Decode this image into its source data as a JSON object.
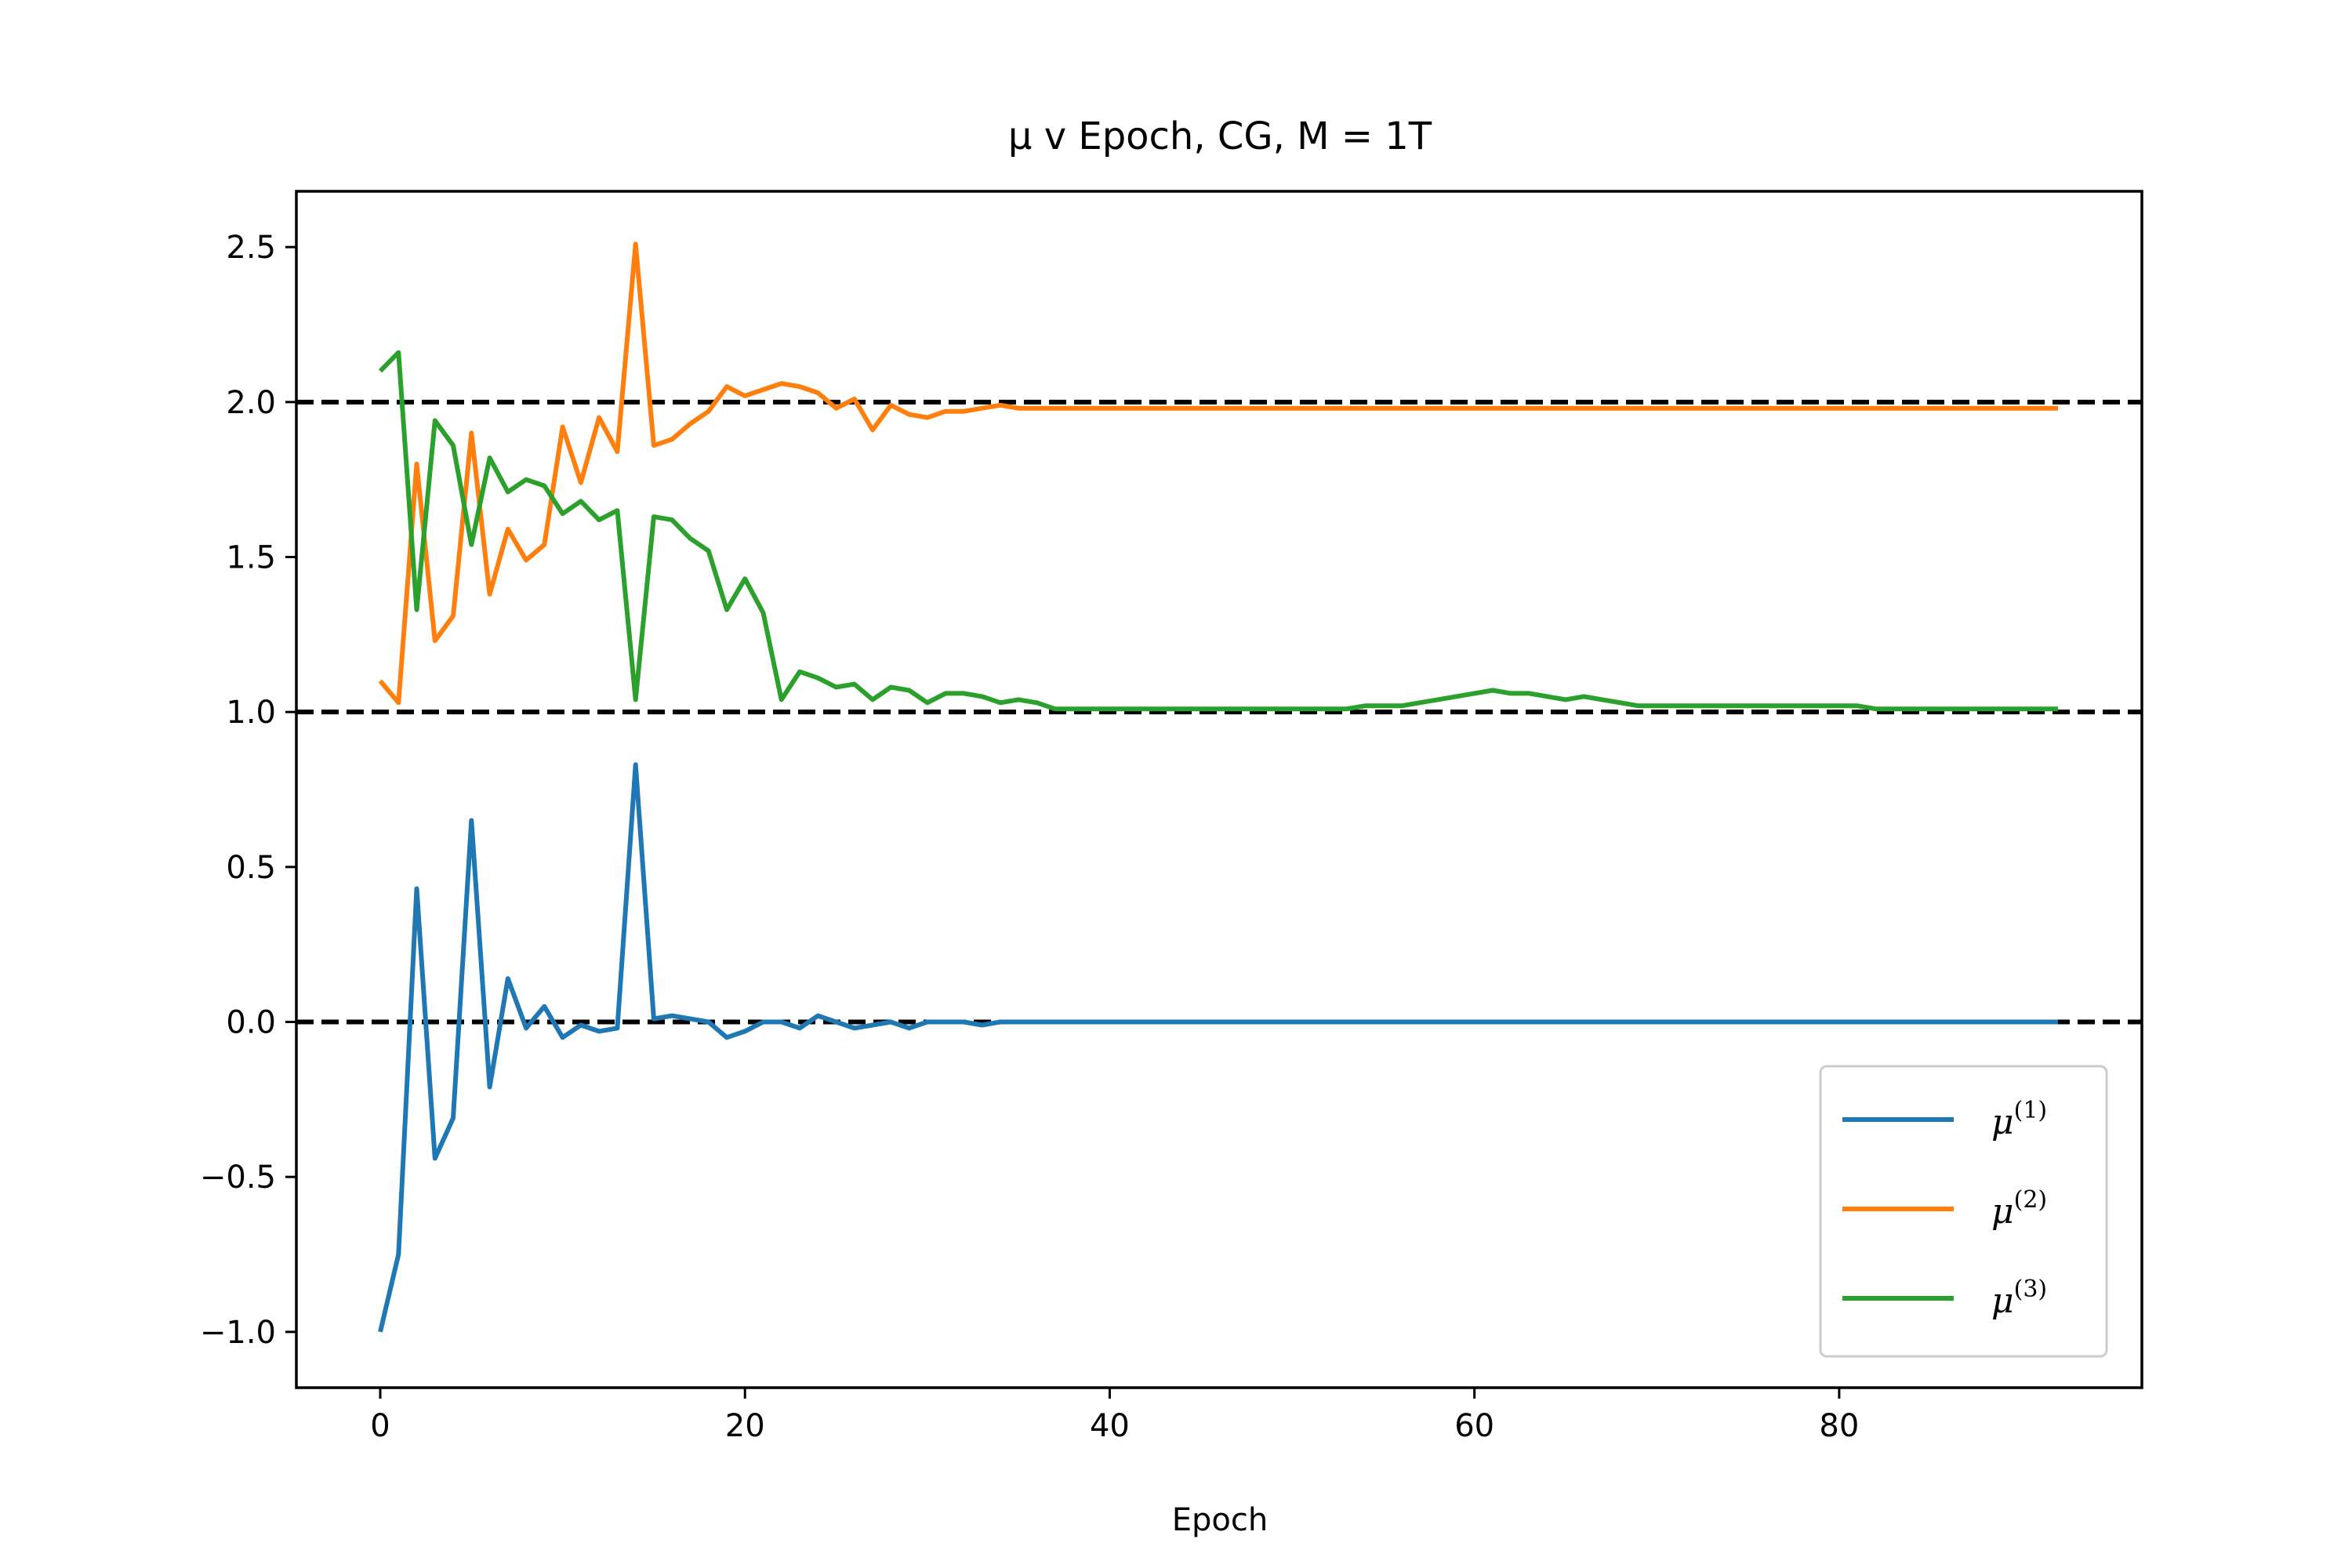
{
  "chart_data": {
    "type": "line",
    "title": "μ v Epoch, CG, M = 1T",
    "xlabel": "Epoch",
    "ylabel": "",
    "xlim": [
      -4.6,
      96.6
    ],
    "ylim": [
      -1.18,
      2.68
    ],
    "xticks": [
      0,
      20,
      40,
      60,
      80
    ],
    "xtick_labels": [
      "0",
      "20",
      "40",
      "60",
      "80"
    ],
    "yticks": [
      -1.0,
      -0.5,
      0.0,
      0.5,
      1.0,
      1.5,
      2.0,
      2.5
    ],
    "ytick_labels": [
      "−1.0",
      "−0.5",
      "0.0",
      "0.5",
      "1.0",
      "1.5",
      "2.0",
      "2.5"
    ],
    "grid": false,
    "legend_position": "lower-right",
    "reference_lines": [
      0.0,
      1.0,
      2.0
    ],
    "series": [
      {
        "name": "μ(1)",
        "legend_base": "μ",
        "legend_sup": "(1)",
        "color": "#1f77b4",
        "x_start": 0,
        "values": [
          -1.0,
          -0.75,
          0.43,
          -0.44,
          -0.31,
          0.65,
          -0.21,
          0.14,
          -0.02,
          0.05,
          -0.05,
          -0.01,
          -0.03,
          -0.02,
          0.83,
          0.01,
          0.02,
          0.01,
          0.0,
          -0.05,
          -0.03,
          0.0,
          0.0,
          -0.02,
          0.02,
          0.0,
          -0.02,
          -0.01,
          0.0,
          -0.02,
          0.0,
          0.0,
          0.0,
          -0.01,
          0.0,
          0.0,
          0.0,
          0.0,
          0.0,
          0.0,
          0.0,
          0.0,
          0.0,
          0.0,
          0.0,
          0.0,
          0.0,
          0.0,
          0.0,
          0.0,
          0.0,
          0.0,
          0.0,
          0.0,
          0.0,
          0.0,
          0.0,
          0.0,
          0.0,
          0.0,
          0.0,
          0.0,
          0.0,
          0.0,
          0.0,
          0.0,
          0.0,
          0.0,
          0.0,
          0.0,
          0.0,
          0.0,
          0.0,
          0.0,
          0.0,
          0.0,
          0.0,
          0.0,
          0.0,
          0.0,
          0.0,
          0.0,
          0.0,
          0.0,
          0.0,
          0.0,
          0.0,
          0.0,
          0.0,
          0.0,
          0.0,
          0.0,
          0.0
        ]
      },
      {
        "name": "μ(2)",
        "legend_base": "μ",
        "legend_sup": "(2)",
        "color": "#ff7f0e",
        "x_start": 0,
        "values": [
          1.1,
          1.03,
          1.8,
          1.23,
          1.31,
          1.9,
          1.38,
          1.59,
          1.49,
          1.54,
          1.92,
          1.74,
          1.95,
          1.84,
          2.51,
          1.86,
          1.88,
          1.93,
          1.97,
          2.05,
          2.02,
          2.04,
          2.06,
          2.05,
          2.03,
          1.98,
          2.01,
          1.91,
          1.99,
          1.96,
          1.95,
          1.97,
          1.97,
          1.98,
          1.99,
          1.98,
          1.98,
          1.98,
          1.98,
          1.98,
          1.98,
          1.98,
          1.98,
          1.98,
          1.98,
          1.98,
          1.98,
          1.98,
          1.98,
          1.98,
          1.98,
          1.98,
          1.98,
          1.98,
          1.98,
          1.98,
          1.98,
          1.98,
          1.98,
          1.98,
          1.98,
          1.98,
          1.98,
          1.98,
          1.98,
          1.98,
          1.98,
          1.98,
          1.98,
          1.98,
          1.98,
          1.98,
          1.98,
          1.98,
          1.98,
          1.98,
          1.98,
          1.98,
          1.98,
          1.98,
          1.98,
          1.98,
          1.98,
          1.98,
          1.98,
          1.98,
          1.98,
          1.98,
          1.98,
          1.98,
          1.98,
          1.98,
          1.98
        ]
      },
      {
        "name": "μ(3)",
        "legend_base": "μ",
        "legend_sup": "(3)",
        "color": "#2ca02c",
        "x_start": 0,
        "values": [
          2.1,
          2.16,
          1.33,
          1.94,
          1.86,
          1.54,
          1.82,
          1.71,
          1.75,
          1.73,
          1.64,
          1.68,
          1.62,
          1.65,
          1.04,
          1.63,
          1.62,
          1.56,
          1.52,
          1.33,
          1.43,
          1.32,
          1.04,
          1.13,
          1.11,
          1.08,
          1.09,
          1.04,
          1.08,
          1.07,
          1.03,
          1.06,
          1.06,
          1.05,
          1.03,
          1.04,
          1.03,
          1.01,
          1.01,
          1.01,
          1.01,
          1.01,
          1.01,
          1.01,
          1.01,
          1.01,
          1.01,
          1.01,
          1.01,
          1.01,
          1.01,
          1.01,
          1.01,
          1.01,
          1.02,
          1.02,
          1.02,
          1.03,
          1.04,
          1.05,
          1.06,
          1.07,
          1.06,
          1.06,
          1.05,
          1.04,
          1.05,
          1.04,
          1.03,
          1.02,
          1.02,
          1.02,
          1.02,
          1.02,
          1.02,
          1.02,
          1.02,
          1.02,
          1.02,
          1.02,
          1.02,
          1.02,
          1.01,
          1.01,
          1.01,
          1.01,
          1.01,
          1.01,
          1.01,
          1.01,
          1.01,
          1.01,
          1.01
        ]
      }
    ]
  }
}
